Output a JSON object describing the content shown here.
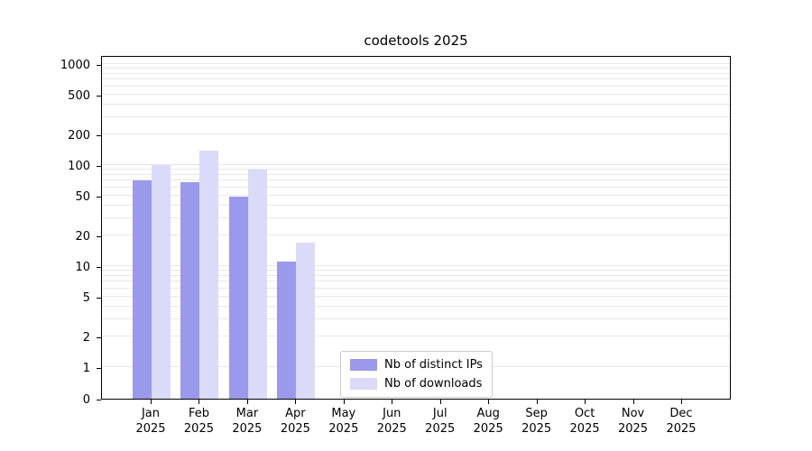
{
  "title": "codetools 2025",
  "chart_data": {
    "type": "bar",
    "categories": [
      "Jan",
      "Feb",
      "Mar",
      "Apr",
      "May",
      "Jun",
      "Jul",
      "Aug",
      "Sep",
      "Oct",
      "Nov",
      "Dec"
    ],
    "year": "2025",
    "series": [
      {
        "name": "Nb of distinct IPs",
        "color": "#9a99ec",
        "values": [
          70,
          68,
          49,
          11,
          0,
          0,
          0,
          0,
          0,
          0,
          0,
          0
        ]
      },
      {
        "name": "Nb of downloads",
        "color": "#dbdaf8",
        "values": [
          100,
          140,
          90,
          17,
          0,
          0,
          0,
          0,
          0,
          0,
          0,
          0
        ]
      }
    ],
    "yticks": [
      0,
      1,
      2,
      5,
      10,
      20,
      50,
      100,
      200,
      500,
      1000
    ],
    "ylim": [
      0,
      1200
    ],
    "yscale": "log-with-zero",
    "grid": "horizontal-minor-log",
    "legend_position": "lower-center"
  }
}
